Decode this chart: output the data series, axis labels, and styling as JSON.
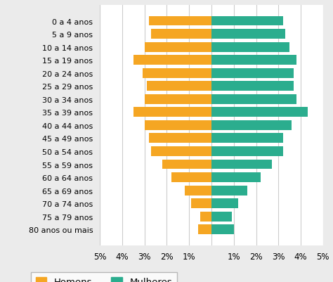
{
  "age_groups": [
    "0 a 4 anos",
    "5 a 9 anos",
    "10 a 14 anos",
    "15 a 19 anos",
    "20 a 24 anos",
    "25 a 29 anos",
    "30 a 34 anos",
    "35 a 39 anos",
    "40 a 44 anos",
    "45 a 49 anos",
    "50 a 54 anos",
    "55 a 59 anos",
    "60 a 64 anos",
    "65 a 69 anos",
    "70 a 74 anos",
    "75 a 79 anos",
    "80 anos ou mais"
  ],
  "homens": [
    2.8,
    2.7,
    3.0,
    3.5,
    3.1,
    2.9,
    3.0,
    3.5,
    3.0,
    2.8,
    2.7,
    2.2,
    1.8,
    1.2,
    0.9,
    0.5,
    0.6
  ],
  "mulheres": [
    3.2,
    3.3,
    3.5,
    3.8,
    3.7,
    3.7,
    3.8,
    4.3,
    3.6,
    3.2,
    3.2,
    2.7,
    2.2,
    1.6,
    1.2,
    0.9,
    1.0
  ],
  "homens_color": "#F5A623",
  "mulheres_color": "#2BAD8E",
  "bg_color": "#EBEBEB",
  "plot_bg_color": "#FFFFFF",
  "legend_border_color": "#AAAAAA",
  "xlim": 5.0,
  "legend_homens": "Homens",
  "legend_mulheres": "Mulheres",
  "label_fontsize": 8.0,
  "tick_fontsize": 8.5,
  "legend_fontsize": 9.5
}
